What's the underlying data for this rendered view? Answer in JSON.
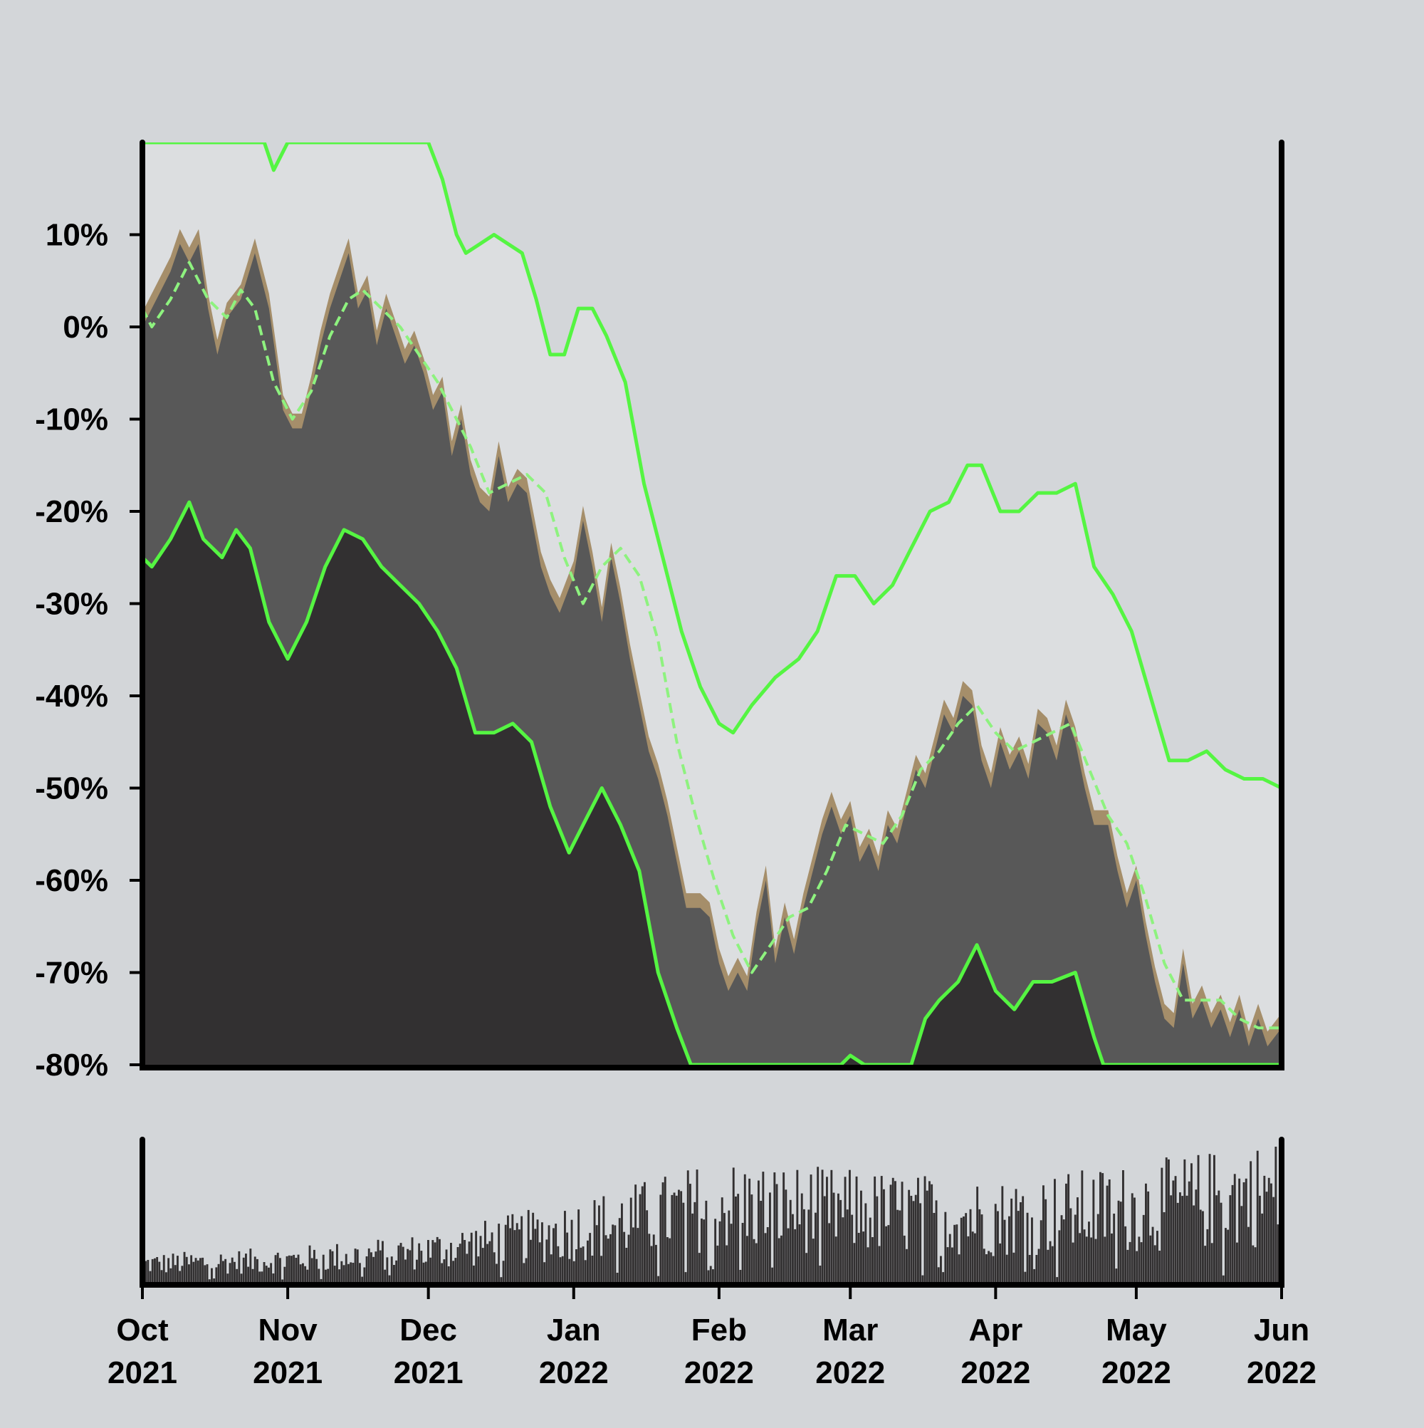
{
  "chart_data": {
    "type": "area",
    "title": "",
    "xlabel": "",
    "ylabel": "",
    "ylim": [
      -80,
      20
    ],
    "y_tick_values": [
      10,
      0,
      -10,
      -20,
      -30,
      -40,
      -50,
      -60,
      -70,
      -80
    ],
    "y_tick_labels": [
      "10%",
      "0%",
      "-10%",
      "-20%",
      "-30%",
      "-40%",
      "-50%",
      "-60%",
      "-70%",
      "-80%"
    ],
    "x_range": [
      "2021-10-01",
      "2022-06-01"
    ],
    "x_ticks": [
      {
        "date": "2021-10-01",
        "month": "Oct",
        "year": "2021"
      },
      {
        "date": "2021-11-01",
        "month": "Nov",
        "year": "2021"
      },
      {
        "date": "2021-12-01",
        "month": "Dec",
        "year": "2021"
      },
      {
        "date": "2022-01-01",
        "month": "Jan",
        "year": "2022"
      },
      {
        "date": "2022-02-01",
        "month": "Feb",
        "year": "2022"
      },
      {
        "date": "2022-03-01",
        "month": "Mar",
        "year": "2022"
      },
      {
        "date": "2022-04-01",
        "month": "Apr",
        "year": "2022"
      },
      {
        "date": "2022-05-01",
        "month": "May",
        "year": "2022"
      },
      {
        "date": "2022-06-01",
        "month": "Jun",
        "year": "2022"
      }
    ],
    "grid": false,
    "legend": "none",
    "colors": {
      "background": "#d3d6d9",
      "band_upper_fill": "#dcdee0",
      "price_area": "#585858",
      "price_range": "#a58e6a",
      "band_lower_fill": "#323031",
      "band_line": "#55f542",
      "volume_bars": "#323031",
      "axis": "#000000"
    },
    "price": [
      {
        "x": "2021-10-01",
        "y": 0
      },
      {
        "x": "2021-10-04",
        "y": 3
      },
      {
        "x": "2021-10-07",
        "y": 6
      },
      {
        "x": "2021-10-09",
        "y": 9
      },
      {
        "x": "2021-10-11",
        "y": 7
      },
      {
        "x": "2021-10-13",
        "y": 9
      },
      {
        "x": "2021-10-15",
        "y": 2
      },
      {
        "x": "2021-10-17",
        "y": -3
      },
      {
        "x": "2021-10-19",
        "y": 1
      },
      {
        "x": "2021-10-22",
        "y": 3
      },
      {
        "x": "2021-10-25",
        "y": 8
      },
      {
        "x": "2021-10-28",
        "y": 2
      },
      {
        "x": "2021-10-31",
        "y": -9
      },
      {
        "x": "2021-11-02",
        "y": -11
      },
      {
        "x": "2021-11-04",
        "y": -11
      },
      {
        "x": "2021-11-06",
        "y": -7
      },
      {
        "x": "2021-11-08",
        "y": -2
      },
      {
        "x": "2021-11-10",
        "y": 2
      },
      {
        "x": "2021-11-12",
        "y": 5
      },
      {
        "x": "2021-11-14",
        "y": 8
      },
      {
        "x": "2021-11-16",
        "y": 2
      },
      {
        "x": "2021-11-18",
        "y": 4
      },
      {
        "x": "2021-11-20",
        "y": -2
      },
      {
        "x": "2021-11-22",
        "y": 2
      },
      {
        "x": "2021-11-24",
        "y": -1
      },
      {
        "x": "2021-11-26",
        "y": -4
      },
      {
        "x": "2021-11-28",
        "y": -2
      },
      {
        "x": "2021-11-30",
        "y": -5
      },
      {
        "x": "2021-12-02",
        "y": -9
      },
      {
        "x": "2021-12-04",
        "y": -7
      },
      {
        "x": "2021-12-06",
        "y": -14
      },
      {
        "x": "2021-12-08",
        "y": -10
      },
      {
        "x": "2021-12-10",
        "y": -16
      },
      {
        "x": "2021-12-12",
        "y": -19
      },
      {
        "x": "2021-12-14",
        "y": -20
      },
      {
        "x": "2021-12-16",
        "y": -14
      },
      {
        "x": "2021-12-18",
        "y": -19
      },
      {
        "x": "2021-12-20",
        "y": -17
      },
      {
        "x": "2021-12-22",
        "y": -18
      },
      {
        "x": "2021-12-25",
        "y": -26
      },
      {
        "x": "2021-12-27",
        "y": -29
      },
      {
        "x": "2021-12-29",
        "y": -31
      },
      {
        "x": "2022-01-01",
        "y": -27
      },
      {
        "x": "2022-01-03",
        "y": -21
      },
      {
        "x": "2022-01-05",
        "y": -26
      },
      {
        "x": "2022-01-07",
        "y": -32
      },
      {
        "x": "2022-01-09",
        "y": -25
      },
      {
        "x": "2022-01-11",
        "y": -30
      },
      {
        "x": "2022-01-13",
        "y": -36
      },
      {
        "x": "2022-01-15",
        "y": -41
      },
      {
        "x": "2022-01-17",
        "y": -46
      },
      {
        "x": "2022-01-19",
        "y": -49
      },
      {
        "x": "2022-01-21",
        "y": -53
      },
      {
        "x": "2022-01-23",
        "y": -58
      },
      {
        "x": "2022-01-25",
        "y": -63
      },
      {
        "x": "2022-01-28",
        "y": -63
      },
      {
        "x": "2022-01-30",
        "y": -64
      },
      {
        "x": "2022-02-01",
        "y": -69
      },
      {
        "x": "2022-02-03",
        "y": -72
      },
      {
        "x": "2022-02-05",
        "y": -70
      },
      {
        "x": "2022-02-07",
        "y": -72
      },
      {
        "x": "2022-02-09",
        "y": -65
      },
      {
        "x": "2022-02-11",
        "y": -60
      },
      {
        "x": "2022-02-13",
        "y": -69
      },
      {
        "x": "2022-02-15",
        "y": -64
      },
      {
        "x": "2022-02-17",
        "y": -68
      },
      {
        "x": "2022-02-19",
        "y": -63
      },
      {
        "x": "2022-02-21",
        "y": -59
      },
      {
        "x": "2022-02-23",
        "y": -55
      },
      {
        "x": "2022-02-25",
        "y": -52
      },
      {
        "x": "2022-02-27",
        "y": -55
      },
      {
        "x": "2022-03-01",
        "y": -53
      },
      {
        "x": "2022-03-03",
        "y": -58
      },
      {
        "x": "2022-03-05",
        "y": -56
      },
      {
        "x": "2022-03-07",
        "y": -59
      },
      {
        "x": "2022-03-09",
        "y": -54
      },
      {
        "x": "2022-03-11",
        "y": -56
      },
      {
        "x": "2022-03-13",
        "y": -52
      },
      {
        "x": "2022-03-15",
        "y": -48
      },
      {
        "x": "2022-03-17",
        "y": -50
      },
      {
        "x": "2022-03-19",
        "y": -46
      },
      {
        "x": "2022-03-21",
        "y": -42
      },
      {
        "x": "2022-03-23",
        "y": -44
      },
      {
        "x": "2022-03-25",
        "y": -40
      },
      {
        "x": "2022-03-27",
        "y": -41
      },
      {
        "x": "2022-03-29",
        "y": -47
      },
      {
        "x": "2022-03-31",
        "y": -50
      },
      {
        "x": "2022-04-02",
        "y": -45
      },
      {
        "x": "2022-04-04",
        "y": -48
      },
      {
        "x": "2022-04-06",
        "y": -46
      },
      {
        "x": "2022-04-08",
        "y": -49
      },
      {
        "x": "2022-04-10",
        "y": -43
      },
      {
        "x": "2022-04-12",
        "y": -44
      },
      {
        "x": "2022-04-14",
        "y": -47
      },
      {
        "x": "2022-04-16",
        "y": -42
      },
      {
        "x": "2022-04-18",
        "y": -45
      },
      {
        "x": "2022-04-20",
        "y": -50
      },
      {
        "x": "2022-04-22",
        "y": -54
      },
      {
        "x": "2022-04-25",
        "y": -54
      },
      {
        "x": "2022-04-27",
        "y": -59
      },
      {
        "x": "2022-04-29",
        "y": -63
      },
      {
        "x": "2022-05-01",
        "y": -60
      },
      {
        "x": "2022-05-03",
        "y": -66
      },
      {
        "x": "2022-05-05",
        "y": -71
      },
      {
        "x": "2022-05-07",
        "y": -75
      },
      {
        "x": "2022-05-09",
        "y": -76
      },
      {
        "x": "2022-05-11",
        "y": -69
      },
      {
        "x": "2022-05-13",
        "y": -75
      },
      {
        "x": "2022-05-15",
        "y": -73
      },
      {
        "x": "2022-05-17",
        "y": -76
      },
      {
        "x": "2022-05-19",
        "y": -74
      },
      {
        "x": "2022-05-21",
        "y": -77
      },
      {
        "x": "2022-05-23",
        "y": -74
      },
      {
        "x": "2022-05-25",
        "y": -78
      },
      {
        "x": "2022-05-27",
        "y": -75
      },
      {
        "x": "2022-05-29",
        "y": -78
      },
      {
        "x": "2022-06-01",
        "y": -76
      }
    ],
    "band_middle": [
      {
        "x": "2021-10-01",
        "y": 2
      },
      {
        "x": "2021-10-03",
        "y": 0
      },
      {
        "x": "2021-10-07",
        "y": 3
      },
      {
        "x": "2021-10-11",
        "y": 7
      },
      {
        "x": "2021-10-15",
        "y": 3
      },
      {
        "x": "2021-10-19",
        "y": 1
      },
      {
        "x": "2021-10-22",
        "y": 4
      },
      {
        "x": "2021-10-25",
        "y": 2
      },
      {
        "x": "2021-10-29",
        "y": -6
      },
      {
        "x": "2021-11-02",
        "y": -10
      },
      {
        "x": "2021-11-06",
        "y": -7
      },
      {
        "x": "2021-11-10",
        "y": -1
      },
      {
        "x": "2021-11-14",
        "y": 3
      },
      {
        "x": "2021-11-17",
        "y": 4
      },
      {
        "x": "2021-11-21",
        "y": 2
      },
      {
        "x": "2021-11-25",
        "y": 0
      },
      {
        "x": "2021-11-29",
        "y": -3
      },
      {
        "x": "2021-12-03",
        "y": -6
      },
      {
        "x": "2021-12-07",
        "y": -10
      },
      {
        "x": "2021-12-10",
        "y": -13
      },
      {
        "x": "2021-12-14",
        "y": -18
      },
      {
        "x": "2021-12-18",
        "y": -17
      },
      {
        "x": "2021-12-22",
        "y": -16
      },
      {
        "x": "2021-12-26",
        "y": -18
      },
      {
        "x": "2021-12-30",
        "y": -25
      },
      {
        "x": "2022-01-03",
        "y": -30
      },
      {
        "x": "2022-01-07",
        "y": -26
      },
      {
        "x": "2022-01-11",
        "y": -24
      },
      {
        "x": "2022-01-15",
        "y": -27
      },
      {
        "x": "2022-01-19",
        "y": -34
      },
      {
        "x": "2022-01-23",
        "y": -45
      },
      {
        "x": "2022-01-27",
        "y": -53
      },
      {
        "x": "2022-01-31",
        "y": -60
      },
      {
        "x": "2022-02-04",
        "y": -66
      },
      {
        "x": "2022-02-08",
        "y": -70
      },
      {
        "x": "2022-02-12",
        "y": -67
      },
      {
        "x": "2022-02-16",
        "y": -64
      },
      {
        "x": "2022-02-20",
        "y": -63
      },
      {
        "x": "2022-02-24",
        "y": -59
      },
      {
        "x": "2022-02-28",
        "y": -54
      },
      {
        "x": "2022-03-04",
        "y": -55
      },
      {
        "x": "2022-03-08",
        "y": -56
      },
      {
        "x": "2022-03-12",
        "y": -53
      },
      {
        "x": "2022-03-16",
        "y": -48
      },
      {
        "x": "2022-03-20",
        "y": -46
      },
      {
        "x": "2022-03-24",
        "y": -43
      },
      {
        "x": "2022-03-28",
        "y": -41
      },
      {
        "x": "2022-04-01",
        "y": -44
      },
      {
        "x": "2022-04-05",
        "y": -46
      },
      {
        "x": "2022-04-09",
        "y": -45
      },
      {
        "x": "2022-04-13",
        "y": -44
      },
      {
        "x": "2022-04-17",
        "y": -43
      },
      {
        "x": "2022-04-21",
        "y": -48
      },
      {
        "x": "2022-04-25",
        "y": -53
      },
      {
        "x": "2022-04-29",
        "y": -56
      },
      {
        "x": "2022-05-03",
        "y": -62
      },
      {
        "x": "2022-05-07",
        "y": -69
      },
      {
        "x": "2022-05-11",
        "y": -73
      },
      {
        "x": "2022-05-15",
        "y": -73
      },
      {
        "x": "2022-05-19",
        "y": -73
      },
      {
        "x": "2022-05-23",
        "y": -75
      },
      {
        "x": "2022-05-27",
        "y": -76
      },
      {
        "x": "2022-06-01",
        "y": -76
      }
    ],
    "band_upper": [
      {
        "x": "2021-10-01",
        "y": 20
      },
      {
        "x": "2021-10-27",
        "y": 20
      },
      {
        "x": "2021-10-29",
        "y": 17
      },
      {
        "x": "2021-11-01",
        "y": 20
      },
      {
        "x": "2021-12-01",
        "y": 20
      },
      {
        "x": "2021-12-04",
        "y": 16
      },
      {
        "x": "2021-12-07",
        "y": 10
      },
      {
        "x": "2021-12-09",
        "y": 8
      },
      {
        "x": "2021-12-12",
        "y": 9
      },
      {
        "x": "2021-12-15",
        "y": 10
      },
      {
        "x": "2021-12-18",
        "y": 9
      },
      {
        "x": "2021-12-21",
        "y": 8
      },
      {
        "x": "2021-12-24",
        "y": 3
      },
      {
        "x": "2021-12-27",
        "y": -3
      },
      {
        "x": "2021-12-30",
        "y": -3
      },
      {
        "x": "2022-01-02",
        "y": 2
      },
      {
        "x": "2022-01-05",
        "y": 2
      },
      {
        "x": "2022-01-08",
        "y": -1
      },
      {
        "x": "2022-01-12",
        "y": -6
      },
      {
        "x": "2022-01-16",
        "y": -17
      },
      {
        "x": "2022-01-20",
        "y": -25
      },
      {
        "x": "2022-01-24",
        "y": -33
      },
      {
        "x": "2022-01-28",
        "y": -39
      },
      {
        "x": "2022-02-01",
        "y": -43
      },
      {
        "x": "2022-02-04",
        "y": -44
      },
      {
        "x": "2022-02-08",
        "y": -41
      },
      {
        "x": "2022-02-13",
        "y": -38
      },
      {
        "x": "2022-02-18",
        "y": -36
      },
      {
        "x": "2022-02-22",
        "y": -33
      },
      {
        "x": "2022-02-26",
        "y": -27
      },
      {
        "x": "2022-03-02",
        "y": -27
      },
      {
        "x": "2022-03-06",
        "y": -30
      },
      {
        "x": "2022-03-10",
        "y": -28
      },
      {
        "x": "2022-03-14",
        "y": -24
      },
      {
        "x": "2022-03-18",
        "y": -20
      },
      {
        "x": "2022-03-22",
        "y": -19
      },
      {
        "x": "2022-03-26",
        "y": -15
      },
      {
        "x": "2022-03-29",
        "y": -15
      },
      {
        "x": "2022-04-02",
        "y": -20
      },
      {
        "x": "2022-04-06",
        "y": -20
      },
      {
        "x": "2022-04-10",
        "y": -18
      },
      {
        "x": "2022-04-14",
        "y": -18
      },
      {
        "x": "2022-04-18",
        "y": -17
      },
      {
        "x": "2022-04-22",
        "y": -26
      },
      {
        "x": "2022-04-26",
        "y": -29
      },
      {
        "x": "2022-04-30",
        "y": -33
      },
      {
        "x": "2022-05-04",
        "y": -40
      },
      {
        "x": "2022-05-08",
        "y": -47
      },
      {
        "x": "2022-05-12",
        "y": -47
      },
      {
        "x": "2022-05-16",
        "y": -46
      },
      {
        "x": "2022-05-20",
        "y": -48
      },
      {
        "x": "2022-05-24",
        "y": -49
      },
      {
        "x": "2022-05-28",
        "y": -49
      },
      {
        "x": "2022-06-01",
        "y": -50
      }
    ],
    "band_lower": [
      {
        "x": "2021-10-01",
        "y": -25
      },
      {
        "x": "2021-10-03",
        "y": -26
      },
      {
        "x": "2021-10-07",
        "y": -23
      },
      {
        "x": "2021-10-11",
        "y": -19
      },
      {
        "x": "2021-10-14",
        "y": -23
      },
      {
        "x": "2021-10-18",
        "y": -25
      },
      {
        "x": "2021-10-21",
        "y": -22
      },
      {
        "x": "2021-10-24",
        "y": -24
      },
      {
        "x": "2021-10-28",
        "y": -32
      },
      {
        "x": "2021-11-01",
        "y": -36
      },
      {
        "x": "2021-11-05",
        "y": -32
      },
      {
        "x": "2021-11-09",
        "y": -26
      },
      {
        "x": "2021-11-13",
        "y": -22
      },
      {
        "x": "2021-11-17",
        "y": -23
      },
      {
        "x": "2021-11-21",
        "y": -26
      },
      {
        "x": "2021-11-25",
        "y": -28
      },
      {
        "x": "2021-11-29",
        "y": -30
      },
      {
        "x": "2021-12-03",
        "y": -33
      },
      {
        "x": "2021-12-07",
        "y": -37
      },
      {
        "x": "2021-12-11",
        "y": -44
      },
      {
        "x": "2021-12-15",
        "y": -44
      },
      {
        "x": "2021-12-19",
        "y": -43
      },
      {
        "x": "2021-12-23",
        "y": -45
      },
      {
        "x": "2021-12-27",
        "y": -52
      },
      {
        "x": "2021-12-31",
        "y": -57
      },
      {
        "x": "2022-01-04",
        "y": -53
      },
      {
        "x": "2022-01-07",
        "y": -50
      },
      {
        "x": "2022-01-11",
        "y": -54
      },
      {
        "x": "2022-01-15",
        "y": -59
      },
      {
        "x": "2022-01-19",
        "y": -70
      },
      {
        "x": "2022-01-23",
        "y": -76
      },
      {
        "x": "2022-01-26",
        "y": -80
      },
      {
        "x": "2022-02-27",
        "y": -80
      },
      {
        "x": "2022-03-01",
        "y": -79
      },
      {
        "x": "2022-03-04",
        "y": -80
      },
      {
        "x": "2022-03-14",
        "y": -80
      },
      {
        "x": "2022-03-17",
        "y": -75
      },
      {
        "x": "2022-03-20",
        "y": -73
      },
      {
        "x": "2022-03-24",
        "y": -71
      },
      {
        "x": "2022-03-28",
        "y": -67
      },
      {
        "x": "2022-04-01",
        "y": -72
      },
      {
        "x": "2022-04-05",
        "y": -74
      },
      {
        "x": "2022-04-09",
        "y": -71
      },
      {
        "x": "2022-04-13",
        "y": -71
      },
      {
        "x": "2022-04-18",
        "y": -70
      },
      {
        "x": "2022-04-22",
        "y": -77
      },
      {
        "x": "2022-04-24",
        "y": -80
      },
      {
        "x": "2022-06-01",
        "y": -80
      }
    ],
    "volume_trend": [
      {
        "x": "2021-10-01",
        "y": 0.14
      },
      {
        "x": "2021-11-01",
        "y": 0.17
      },
      {
        "x": "2021-12-01",
        "y": 0.24
      },
      {
        "x": "2022-01-01",
        "y": 0.4
      },
      {
        "x": "2022-02-01",
        "y": 0.6
      },
      {
        "x": "2022-03-01",
        "y": 0.55
      },
      {
        "x": "2022-04-01",
        "y": 0.5
      },
      {
        "x": "2022-05-01",
        "y": 0.58
      },
      {
        "x": "2022-06-01",
        "y": 0.7
      }
    ]
  }
}
